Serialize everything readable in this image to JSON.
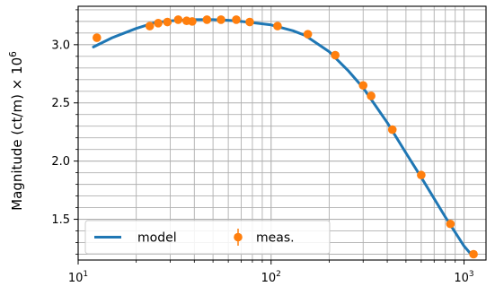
{
  "chart_data": {
    "type": "line",
    "title": "",
    "xlabel": "",
    "ylabel": "Magnitude (ct/m) × 10",
    "ylabel_exponent": "6",
    "xscale": "log",
    "xlim": [
      10,
      1300
    ],
    "ylim": [
      1.15,
      3.33
    ],
    "grid": "major and minor",
    "legend_position": "lower-left",
    "x_tick_labels": [
      {
        "value": 10,
        "base": "10",
        "exp": "1"
      },
      {
        "value": 100,
        "base": "10",
        "exp": "2"
      },
      {
        "value": 1000,
        "base": "10",
        "exp": "3"
      }
    ],
    "y_tick_labels": [
      {
        "value": 1.5,
        "label": "1.5"
      },
      {
        "value": 2.0,
        "label": "2.0"
      },
      {
        "value": 2.5,
        "label": "2.5"
      },
      {
        "value": 3.0,
        "label": "3.0"
      }
    ],
    "series": [
      {
        "name": "model",
        "kind": "line",
        "color": "#1f77b4",
        "x": [
          12,
          15,
          20,
          25,
          30,
          40,
          50,
          60,
          70,
          80,
          100,
          130,
          150,
          200,
          250,
          300,
          400,
          500,
          600,
          800,
          1000,
          1100
        ],
        "y": [
          2.98,
          3.06,
          3.14,
          3.19,
          3.205,
          3.215,
          3.215,
          3.21,
          3.2,
          3.19,
          3.17,
          3.12,
          3.08,
          2.94,
          2.78,
          2.63,
          2.33,
          2.07,
          1.86,
          1.52,
          1.27,
          1.19
        ]
      },
      {
        "name": "meas.",
        "kind": "errorbar",
        "color": "#ff7f0e",
        "x": [
          12.5,
          23.5,
          26,
          29,
          33,
          36.5,
          39,
          46.5,
          55,
          66,
          77.5,
          108,
          155,
          215,
          300,
          330,
          425,
          600,
          850,
          1120
        ],
        "y": [
          3.06,
          3.16,
          3.185,
          3.195,
          3.215,
          3.205,
          3.2,
          3.215,
          3.215,
          3.215,
          3.195,
          3.16,
          3.09,
          2.91,
          2.65,
          2.56,
          2.27,
          1.88,
          1.46,
          1.2
        ]
      }
    ]
  }
}
